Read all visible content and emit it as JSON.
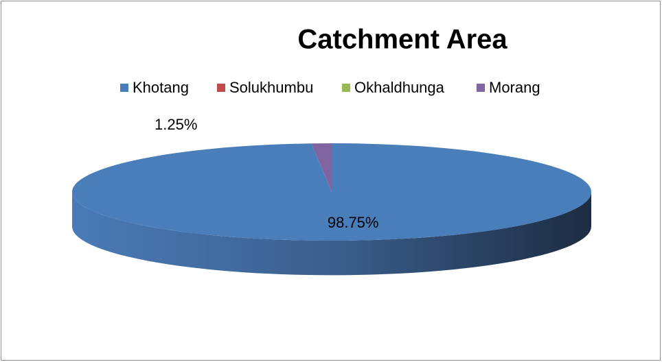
{
  "chart_data": {
    "type": "pie",
    "title": "Catchment Area",
    "categories": [
      "Khotang",
      "Solukhumbu",
      "Okhaldhunga",
      "Morang"
    ],
    "values": [
      98.75,
      0,
      0,
      1.25
    ],
    "value_labels": [
      "98.75%",
      null,
      null,
      "1.25%"
    ],
    "colors": [
      "#4a7ebb",
      "#be4b48",
      "#98b954",
      "#8064a2"
    ],
    "legend": "top"
  }
}
